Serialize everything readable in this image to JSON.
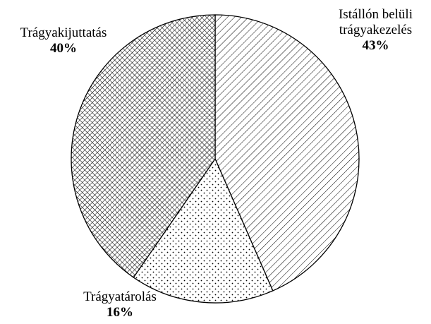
{
  "chart_data": {
    "type": "pie",
    "categories": [
      "Istállón belüli trágyakezelés",
      "Trágyatárolás",
      "Trágyakijuttatás"
    ],
    "values": [
      43,
      16,
      40
    ],
    "value_labels": [
      "43%",
      "16%",
      "40%"
    ],
    "patterns": [
      "diagonal",
      "dots",
      "crosshatch"
    ]
  }
}
